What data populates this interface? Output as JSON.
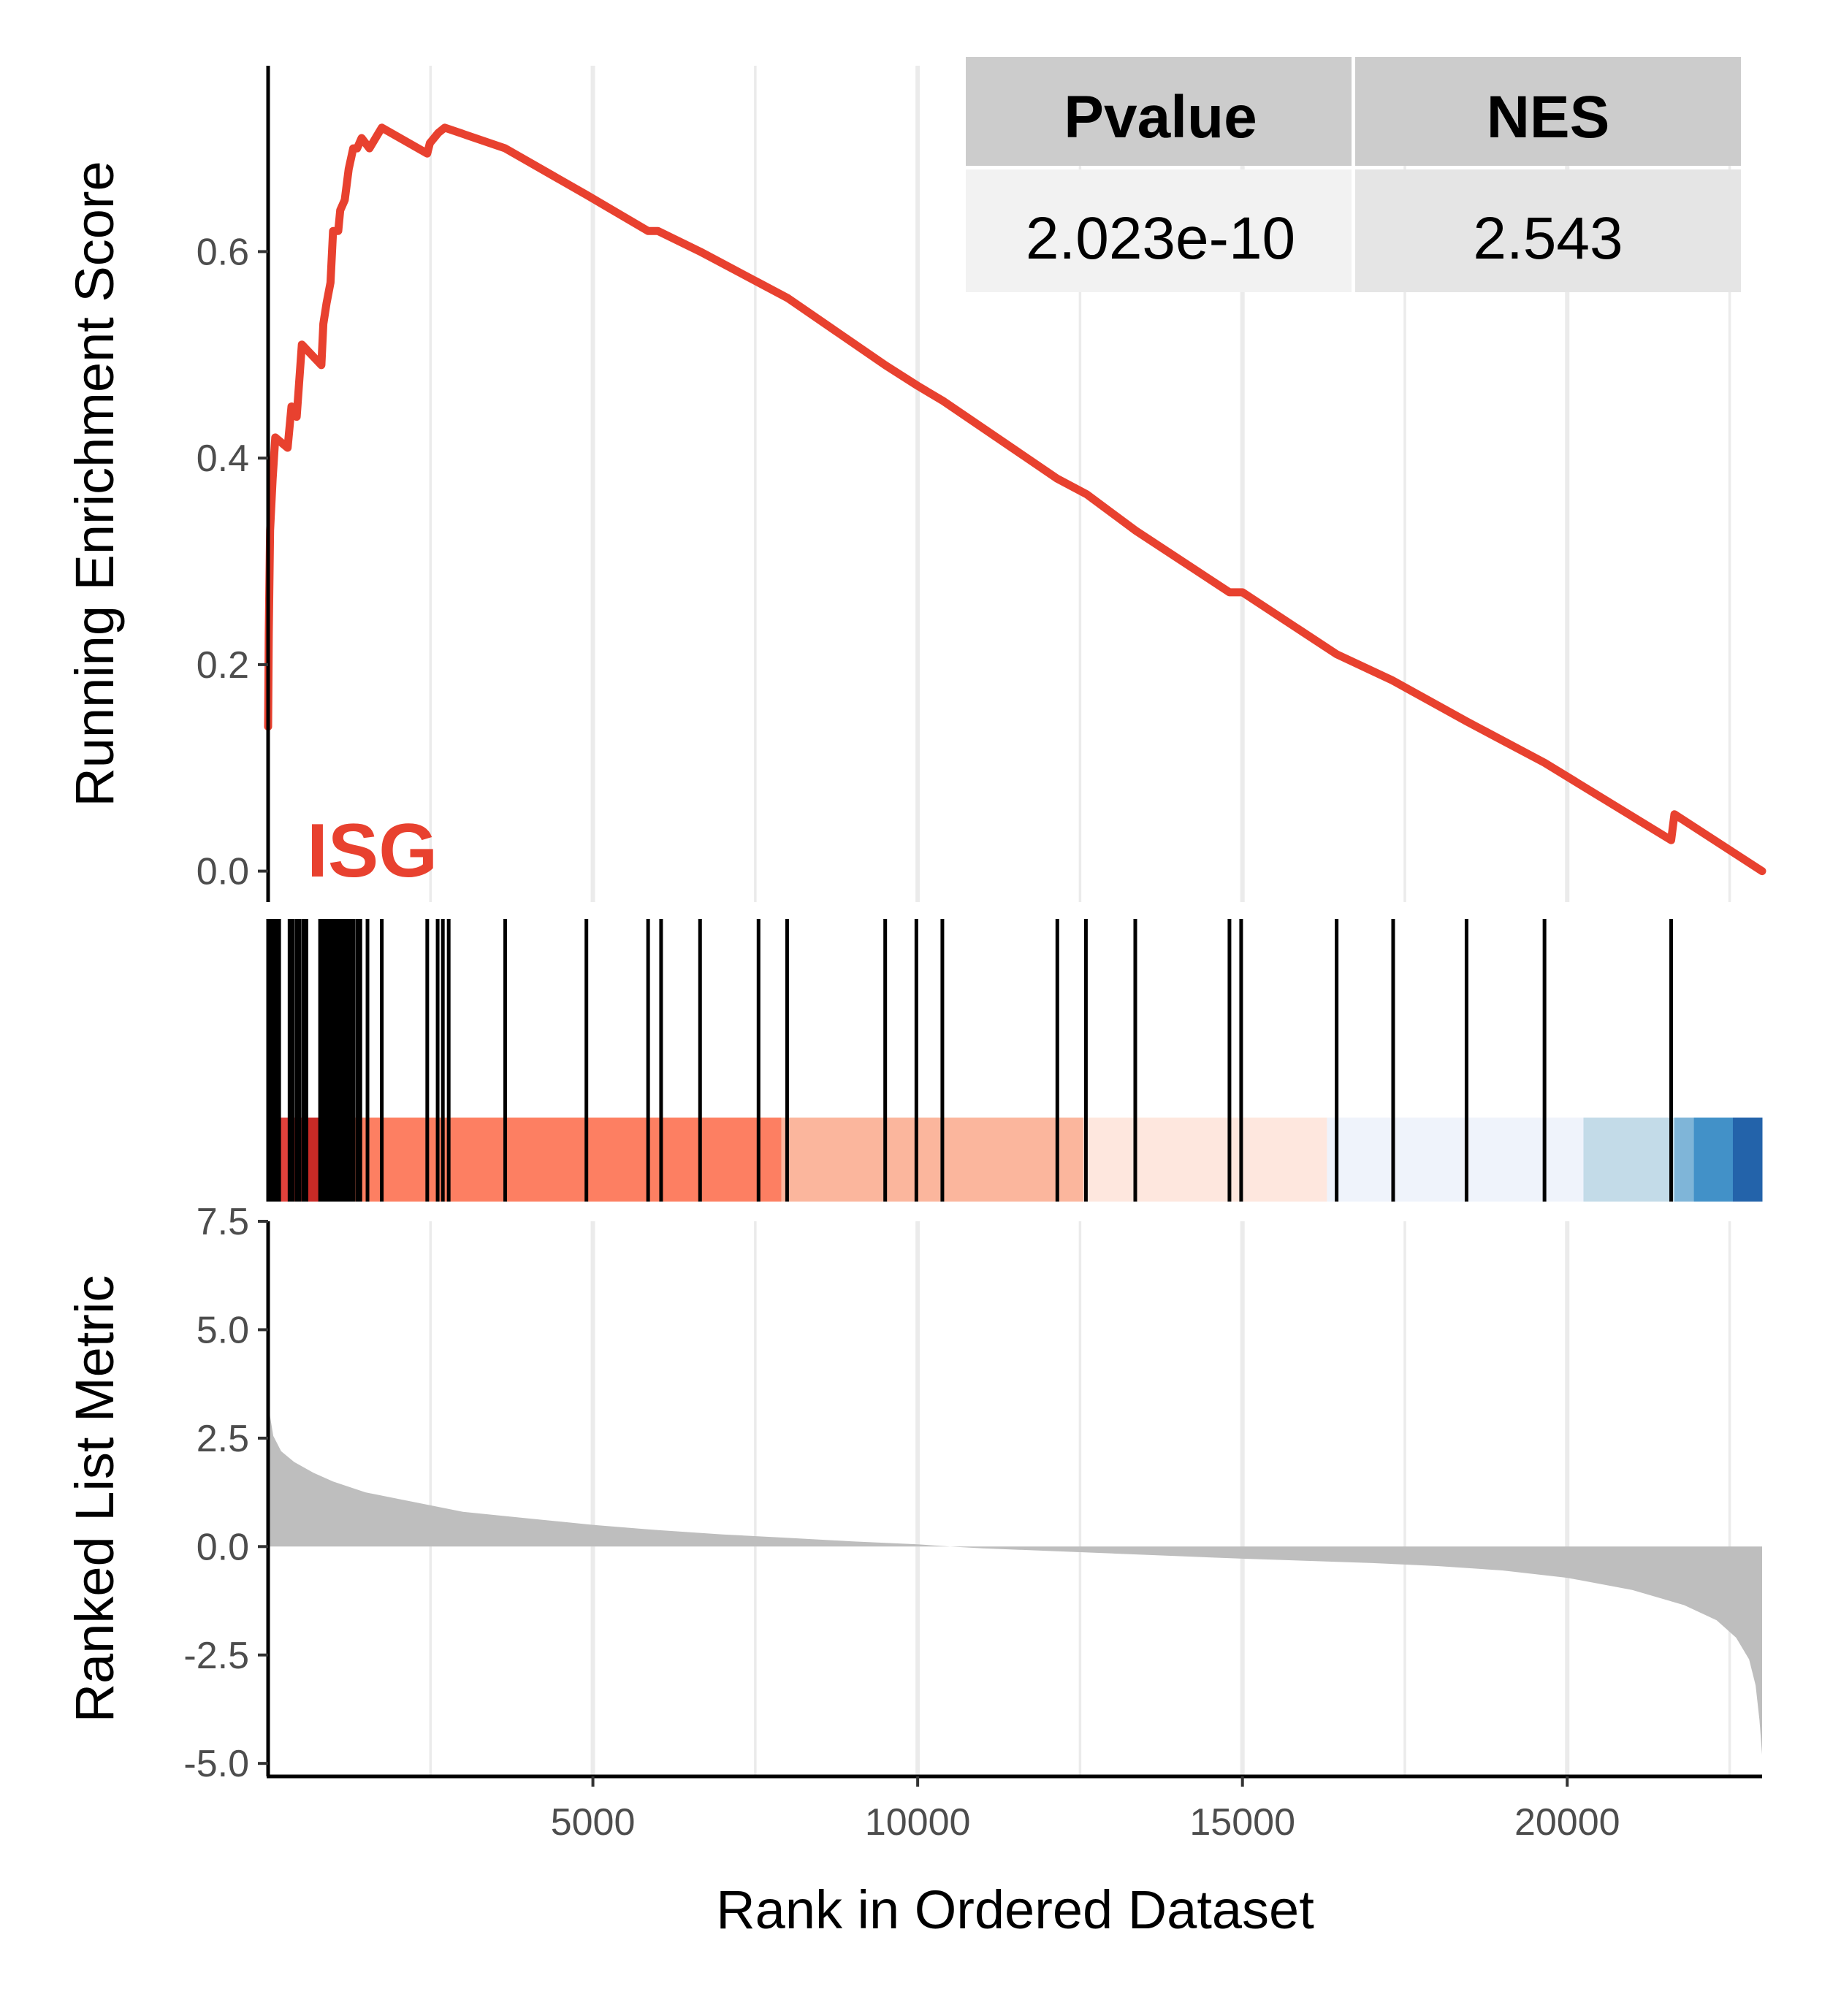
{
  "chart_data": {
    "type": "line",
    "gene_set": "ISG",
    "colors": {
      "curve": "#e8412f",
      "hit": "#000000",
      "metric_fill": "#bebebe",
      "grid": "#ebebeb",
      "table_header_bg": "#cccccc",
      "table_cell_bg_1": "#f2f2f2",
      "table_cell_bg_2": "#e5e5e5"
    },
    "stats_table": {
      "headers": [
        "Pvalue",
        "NES"
      ],
      "values": [
        "2.023e-10",
        "2.543"
      ]
    },
    "running_score": {
      "ylabel": "Running Enrichment Score",
      "yticks": [
        0.0,
        0.2,
        0.4,
        0.6
      ],
      "ytick_labels": [
        "0.0",
        "0.2",
        "0.4",
        "0.6"
      ],
      "ylim": [
        -0.03,
        0.78
      ],
      "points": [
        [
          0,
          0.14
        ],
        [
          10,
          0.23
        ],
        [
          30,
          0.33
        ],
        [
          70,
          0.38
        ],
        [
          110,
          0.42
        ],
        [
          300,
          0.41
        ],
        [
          360,
          0.45
        ],
        [
          440,
          0.44
        ],
        [
          520,
          0.51
        ],
        [
          820,
          0.49
        ],
        [
          850,
          0.53
        ],
        [
          900,
          0.55
        ],
        [
          960,
          0.57
        ],
        [
          1000,
          0.62
        ],
        [
          1080,
          0.62
        ],
        [
          1110,
          0.64
        ],
        [
          1180,
          0.65
        ],
        [
          1240,
          0.68
        ],
        [
          1310,
          0.7
        ],
        [
          1370,
          0.7
        ],
        [
          1440,
          0.71
        ],
        [
          1560,
          0.7
        ],
        [
          1750,
          0.72
        ],
        [
          2450,
          0.695
        ],
        [
          2490,
          0.705
        ],
        [
          2620,
          0.715
        ],
        [
          2720,
          0.72
        ],
        [
          3650,
          0.7
        ],
        [
          4900,
          0.655
        ],
        [
          5850,
          0.62
        ],
        [
          6000,
          0.62
        ],
        [
          6650,
          0.6
        ],
        [
          7550,
          0.57
        ],
        [
          8000,
          0.555
        ],
        [
          9500,
          0.49
        ],
        [
          10000,
          0.47
        ],
        [
          10400,
          0.455
        ],
        [
          12150,
          0.38
        ],
        [
          12600,
          0.365
        ],
        [
          13350,
          0.33
        ],
        [
          14800,
          0.27
        ],
        [
          15000,
          0.27
        ],
        [
          16450,
          0.21
        ],
        [
          17300,
          0.185
        ],
        [
          18450,
          0.145
        ],
        [
          19650,
          0.105
        ],
        [
          21600,
          0.03
        ],
        [
          21650,
          0.055
        ],
        [
          23000,
          0.0
        ]
      ]
    },
    "hits": [
      0,
      20,
      40,
      60,
      90,
      130,
      170,
      330,
      380,
      440,
      480,
      540,
      590,
      800,
      840,
      880,
      900,
      930,
      960,
      990,
      1020,
      1040,
      1060,
      1080,
      1100,
      1120,
      1150,
      1170,
      1200,
      1230,
      1250,
      1280,
      1310,
      1370,
      1420,
      1530,
      1750,
      2450,
      2610,
      2690,
      2780,
      3650,
      4900,
      5850,
      6050,
      6650,
      7550,
      7990,
      9500,
      9980,
      10380,
      12150,
      12590,
      13350,
      14800,
      14980,
      16450,
      17320,
      18450,
      19650,
      21600
    ],
    "color_bar": [
      {
        "from": 0,
        "to": 100,
        "color": "#b2182b"
      },
      {
        "from": 100,
        "to": 600,
        "color": "#e0413b"
      },
      {
        "from": 600,
        "to": 1250,
        "color": "#c92a26"
      },
      {
        "from": 1250,
        "to": 7900,
        "color": "#fd7f62"
      },
      {
        "from": 7900,
        "to": 12550,
        "color": "#fbb69d"
      },
      {
        "from": 12550,
        "to": 16300,
        "color": "#fee7de"
      },
      {
        "from": 16300,
        "to": 20250,
        "color": "#eff3fb"
      },
      {
        "from": 20250,
        "to": 21650,
        "color": "#c3dbe8"
      },
      {
        "from": 21650,
        "to": 21950,
        "color": "#7fb5d8"
      },
      {
        "from": 21950,
        "to": 22550,
        "color": "#4291c8"
      },
      {
        "from": 22550,
        "to": 23000,
        "color": "#2363aa"
      }
    ],
    "ranked_metric": {
      "ylabel": "Ranked List Metric",
      "yticks": [
        -5.0,
        -2.5,
        0.0,
        2.5,
        5.0,
        7.5
      ],
      "ytick_labels": [
        "-5.0",
        "-2.5",
        "0.0",
        "2.5",
        "5.0",
        "7.5"
      ],
      "ylim": [
        -5.3,
        7.5
      ],
      "points": [
        [
          0,
          3.5
        ],
        [
          30,
          3.0
        ],
        [
          80,
          2.55
        ],
        [
          200,
          2.2
        ],
        [
          400,
          1.95
        ],
        [
          700,
          1.7
        ],
        [
          1000,
          1.5
        ],
        [
          1500,
          1.25
        ],
        [
          2000,
          1.1
        ],
        [
          2500,
          0.95
        ],
        [
          3000,
          0.8
        ],
        [
          4000,
          0.65
        ],
        [
          5000,
          0.5
        ],
        [
          6000,
          0.38
        ],
        [
          7000,
          0.28
        ],
        [
          8000,
          0.2
        ],
        [
          9000,
          0.12
        ],
        [
          10000,
          0.05
        ],
        [
          10500,
          0.0
        ],
        [
          11000,
          -0.04
        ],
        [
          12000,
          -0.1
        ],
        [
          13000,
          -0.16
        ],
        [
          14000,
          -0.22
        ],
        [
          15000,
          -0.28
        ],
        [
          16000,
          -0.33
        ],
        [
          17000,
          -0.38
        ],
        [
          18000,
          -0.45
        ],
        [
          19000,
          -0.55
        ],
        [
          20000,
          -0.72
        ],
        [
          21000,
          -1.0
        ],
        [
          21800,
          -1.35
        ],
        [
          22300,
          -1.7
        ],
        [
          22600,
          -2.1
        ],
        [
          22800,
          -2.6
        ],
        [
          22900,
          -3.2
        ],
        [
          22960,
          -4.0
        ],
        [
          23000,
          -4.8
        ]
      ]
    },
    "xaxis": {
      "label": "Rank in Ordered Dataset",
      "xlim": [
        0,
        23000
      ],
      "ticks": [
        5000,
        10000,
        15000,
        20000
      ],
      "tick_labels": [
        "5000",
        "10000",
        "15000",
        "20000"
      ],
      "minor_grid": [
        2500,
        7500,
        12500,
        17500,
        22500
      ]
    }
  }
}
